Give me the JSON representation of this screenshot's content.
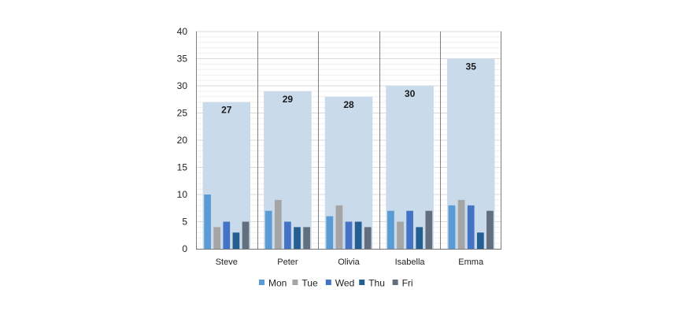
{
  "chart_data": {
    "type": "bar",
    "categories": [
      "Steve",
      "Peter",
      "Olivia",
      "Isabella",
      "Emma"
    ],
    "totals": [
      27,
      29,
      28,
      30,
      35
    ],
    "series": [
      {
        "name": "Mon",
        "values": [
          10,
          7,
          6,
          7,
          8
        ]
      },
      {
        "name": "Tue",
        "values": [
          4,
          9,
          8,
          5,
          9
        ]
      },
      {
        "name": "Wed",
        "values": [
          5,
          5,
          5,
          7,
          8
        ]
      },
      {
        "name": "Thu",
        "values": [
          3,
          4,
          5,
          4,
          3
        ]
      },
      {
        "name": "Fri",
        "values": [
          5,
          4,
          4,
          7,
          7
        ]
      }
    ],
    "ylim": [
      0,
      40
    ],
    "yticks": [
      0,
      5,
      10,
      15,
      20,
      25,
      30,
      35,
      40
    ],
    "grid": true,
    "legend": "bottom",
    "colors": {
      "total": "#c9daeb",
      "series": [
        "#5b9bd5",
        "#a5a5a5",
        "#4472c4",
        "#255e91",
        "#636e7e"
      ]
    }
  }
}
